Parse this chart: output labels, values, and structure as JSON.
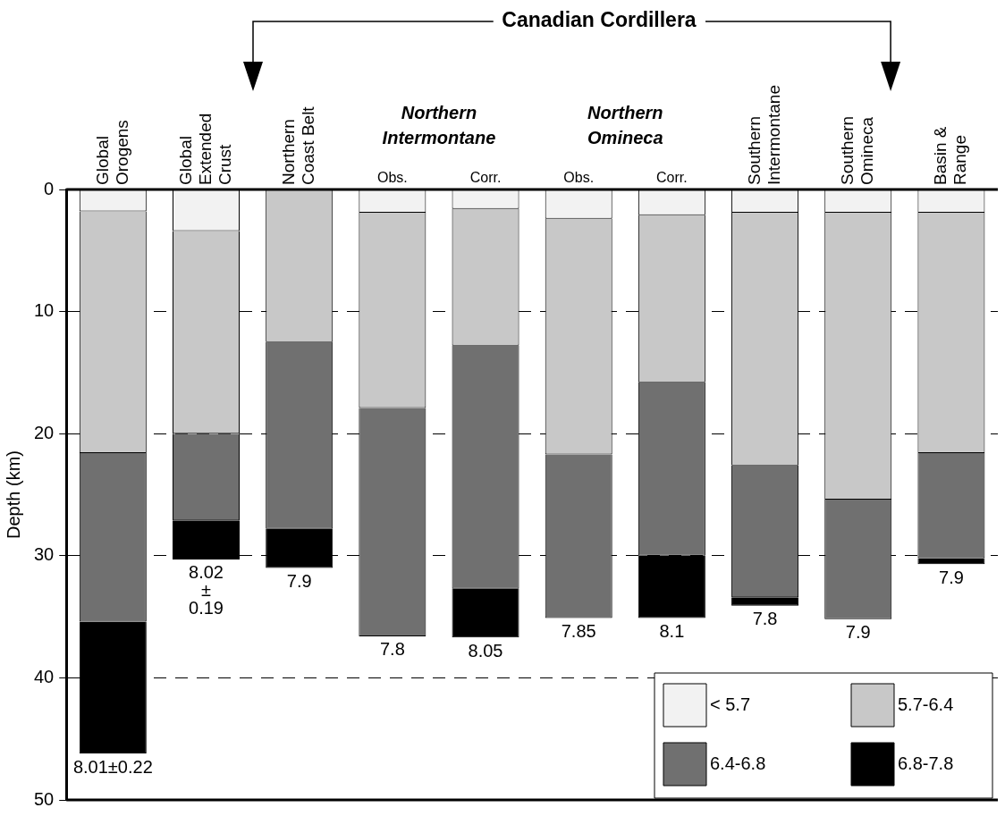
{
  "chart_data": {
    "type": "bar",
    "title": "Canadian Cordillera",
    "ylabel": "Depth (km)",
    "categories": [
      "Global\nOrogens",
      "Global\nExtended\nCrust",
      "Northern\nCoast Belt",
      "Obs.",
      "Corr.",
      "Obs.",
      "Corr.",
      "Southern\nIntermontane",
      "Southern\nOmineca",
      "Basin &\nRange"
    ],
    "stacked": true,
    "series": [
      {
        "name": "< 5.7",
        "color": "#f2f2f2",
        "values": [
          1.8,
          3.4,
          null,
          1.9,
          1.6,
          2.4,
          2.1,
          1.9,
          1.9,
          1.9
        ]
      },
      {
        "name": "5.7-6.4",
        "color": "#c8c8c8",
        "values": [
          19.8,
          16.6,
          12.5,
          16,
          11.2,
          19.3,
          13.7,
          20.7,
          23.5,
          19.7
        ]
      },
      {
        "name": "6.4-6.8",
        "color": "#707070",
        "values": [
          13.8,
          7.1,
          15.3,
          18.7,
          19.9,
          13.4,
          14.2,
          10.8,
          9.8,
          8.6
        ]
      },
      {
        "name": "6.8-7.8",
        "color": "#000000",
        "values": [
          10.8,
          3.2,
          3.2,
          null,
          4,
          null,
          5.1,
          0.7,
          null,
          0.5
        ]
      }
    ],
    "ylim": [
      50,
      0
    ],
    "yticks": [
      0,
      10,
      20,
      30,
      40,
      50
    ],
    "grid": "y",
    "legend": "bottom right",
    "annotations": [
      "Northern\nIntermontane",
      "Northern\nOmineca",
      "8.01±0.22",
      "8.02\n±\n0.19",
      "7.9",
      "7.8",
      "8.05",
      "7.85",
      "8.1",
      "7.8",
      "7.9",
      "7.9"
    ]
  }
}
